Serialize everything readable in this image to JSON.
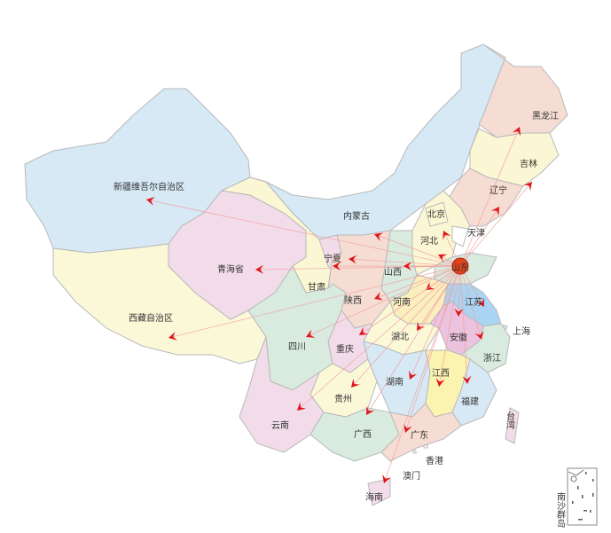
{
  "origin": "山东",
  "colors": {
    "route": "#f2a0a0",
    "arrow": "#e1141b",
    "origin_marker": "#e2431c"
  },
  "provinces": [
    {
      "id": "xinjiang",
      "name": "新疆维吾尔自治区",
      "color": "#d6e9f5"
    },
    {
      "id": "xizang",
      "name": "西藏自治区",
      "color": "#fbf8d8"
    },
    {
      "id": "qinghai",
      "name": "青海省",
      "color": "#f3dcea"
    },
    {
      "id": "gansu",
      "name": "甘肃",
      "color": "#fbf6d3"
    },
    {
      "id": "neimenggu",
      "name": "内蒙古",
      "color": "#d6e9f5"
    },
    {
      "id": "heilongjiang",
      "name": "黑龙江",
      "color": "#f6ddd3"
    },
    {
      "id": "jilin",
      "name": "吉林",
      "color": "#fbf6d3"
    },
    {
      "id": "liaoning",
      "name": "辽宁",
      "color": "#f6ddd3"
    },
    {
      "id": "hebei",
      "name": "河北",
      "color": "#fbf6d3"
    },
    {
      "id": "beijing",
      "name": "北京",
      "color": "#fbf6d3"
    },
    {
      "id": "tianjin",
      "name": "天津",
      "color": "#ffffff"
    },
    {
      "id": "shanxi",
      "name": "山西",
      "color": "#d9eadf"
    },
    {
      "id": "shandong",
      "name": "山东",
      "color": "#d9eadf"
    },
    {
      "id": "ningxia",
      "name": "宁夏",
      "color": "#f3dcea"
    },
    {
      "id": "shaanxi",
      "name": "陕西",
      "color": "#f6ddd3"
    },
    {
      "id": "henan",
      "name": "河南",
      "color": "#fbefc0"
    },
    {
      "id": "jiangsu",
      "name": "江苏",
      "color": "#a9d5f2"
    },
    {
      "id": "shanghai",
      "name": "上海",
      "color": "#d6e9f5"
    },
    {
      "id": "anhui",
      "name": "安徽",
      "color": "#ebc3df"
    },
    {
      "id": "zhejiang",
      "name": "浙江",
      "color": "#d9eadf"
    },
    {
      "id": "hubei",
      "name": "湖北",
      "color": "#fbf8d8"
    },
    {
      "id": "chongqing",
      "name": "重庆",
      "color": "#f3dcea"
    },
    {
      "id": "sichuan",
      "name": "四川",
      "color": "#d9eadf"
    },
    {
      "id": "guizhou",
      "name": "贵州",
      "color": "#fbf8d8"
    },
    {
      "id": "yunnan",
      "name": "云南",
      "color": "#f3dcea"
    },
    {
      "id": "hunan",
      "name": "湖南",
      "color": "#d6e9f5"
    },
    {
      "id": "jiangxi",
      "name": "江西",
      "color": "#fbf3b0"
    },
    {
      "id": "fujian",
      "name": "福建",
      "color": "#d6e9f5"
    },
    {
      "id": "guangxi",
      "name": "广西",
      "color": "#d9eadf"
    },
    {
      "id": "guangdong",
      "name": "广东",
      "color": "#f6ddd3"
    },
    {
      "id": "hainan",
      "name": "海南",
      "color": "#f3dcea"
    },
    {
      "id": "taiwan",
      "name": "台湾",
      "color": "#f3dcea"
    },
    {
      "id": "xianggang",
      "name": "香港",
      "color": "#ffffff"
    },
    {
      "id": "aomen",
      "name": "澳门",
      "color": "#ffffff"
    }
  ],
  "routes": [
    "黑龙江",
    "吉林",
    "辽宁",
    "北京",
    "河北",
    "内蒙古",
    "新疆维吾尔自治区",
    "青海省",
    "宁夏",
    "甘肃",
    "西藏自治区",
    "陕西",
    "山西",
    "河南",
    "四川",
    "重庆",
    "湖北",
    "贵州",
    "云南",
    "广西",
    "广东",
    "海南",
    "湖南",
    "江西",
    "福建",
    "浙江",
    "安徽",
    "江苏"
  ],
  "inset": {
    "label": "南沙群岛"
  }
}
